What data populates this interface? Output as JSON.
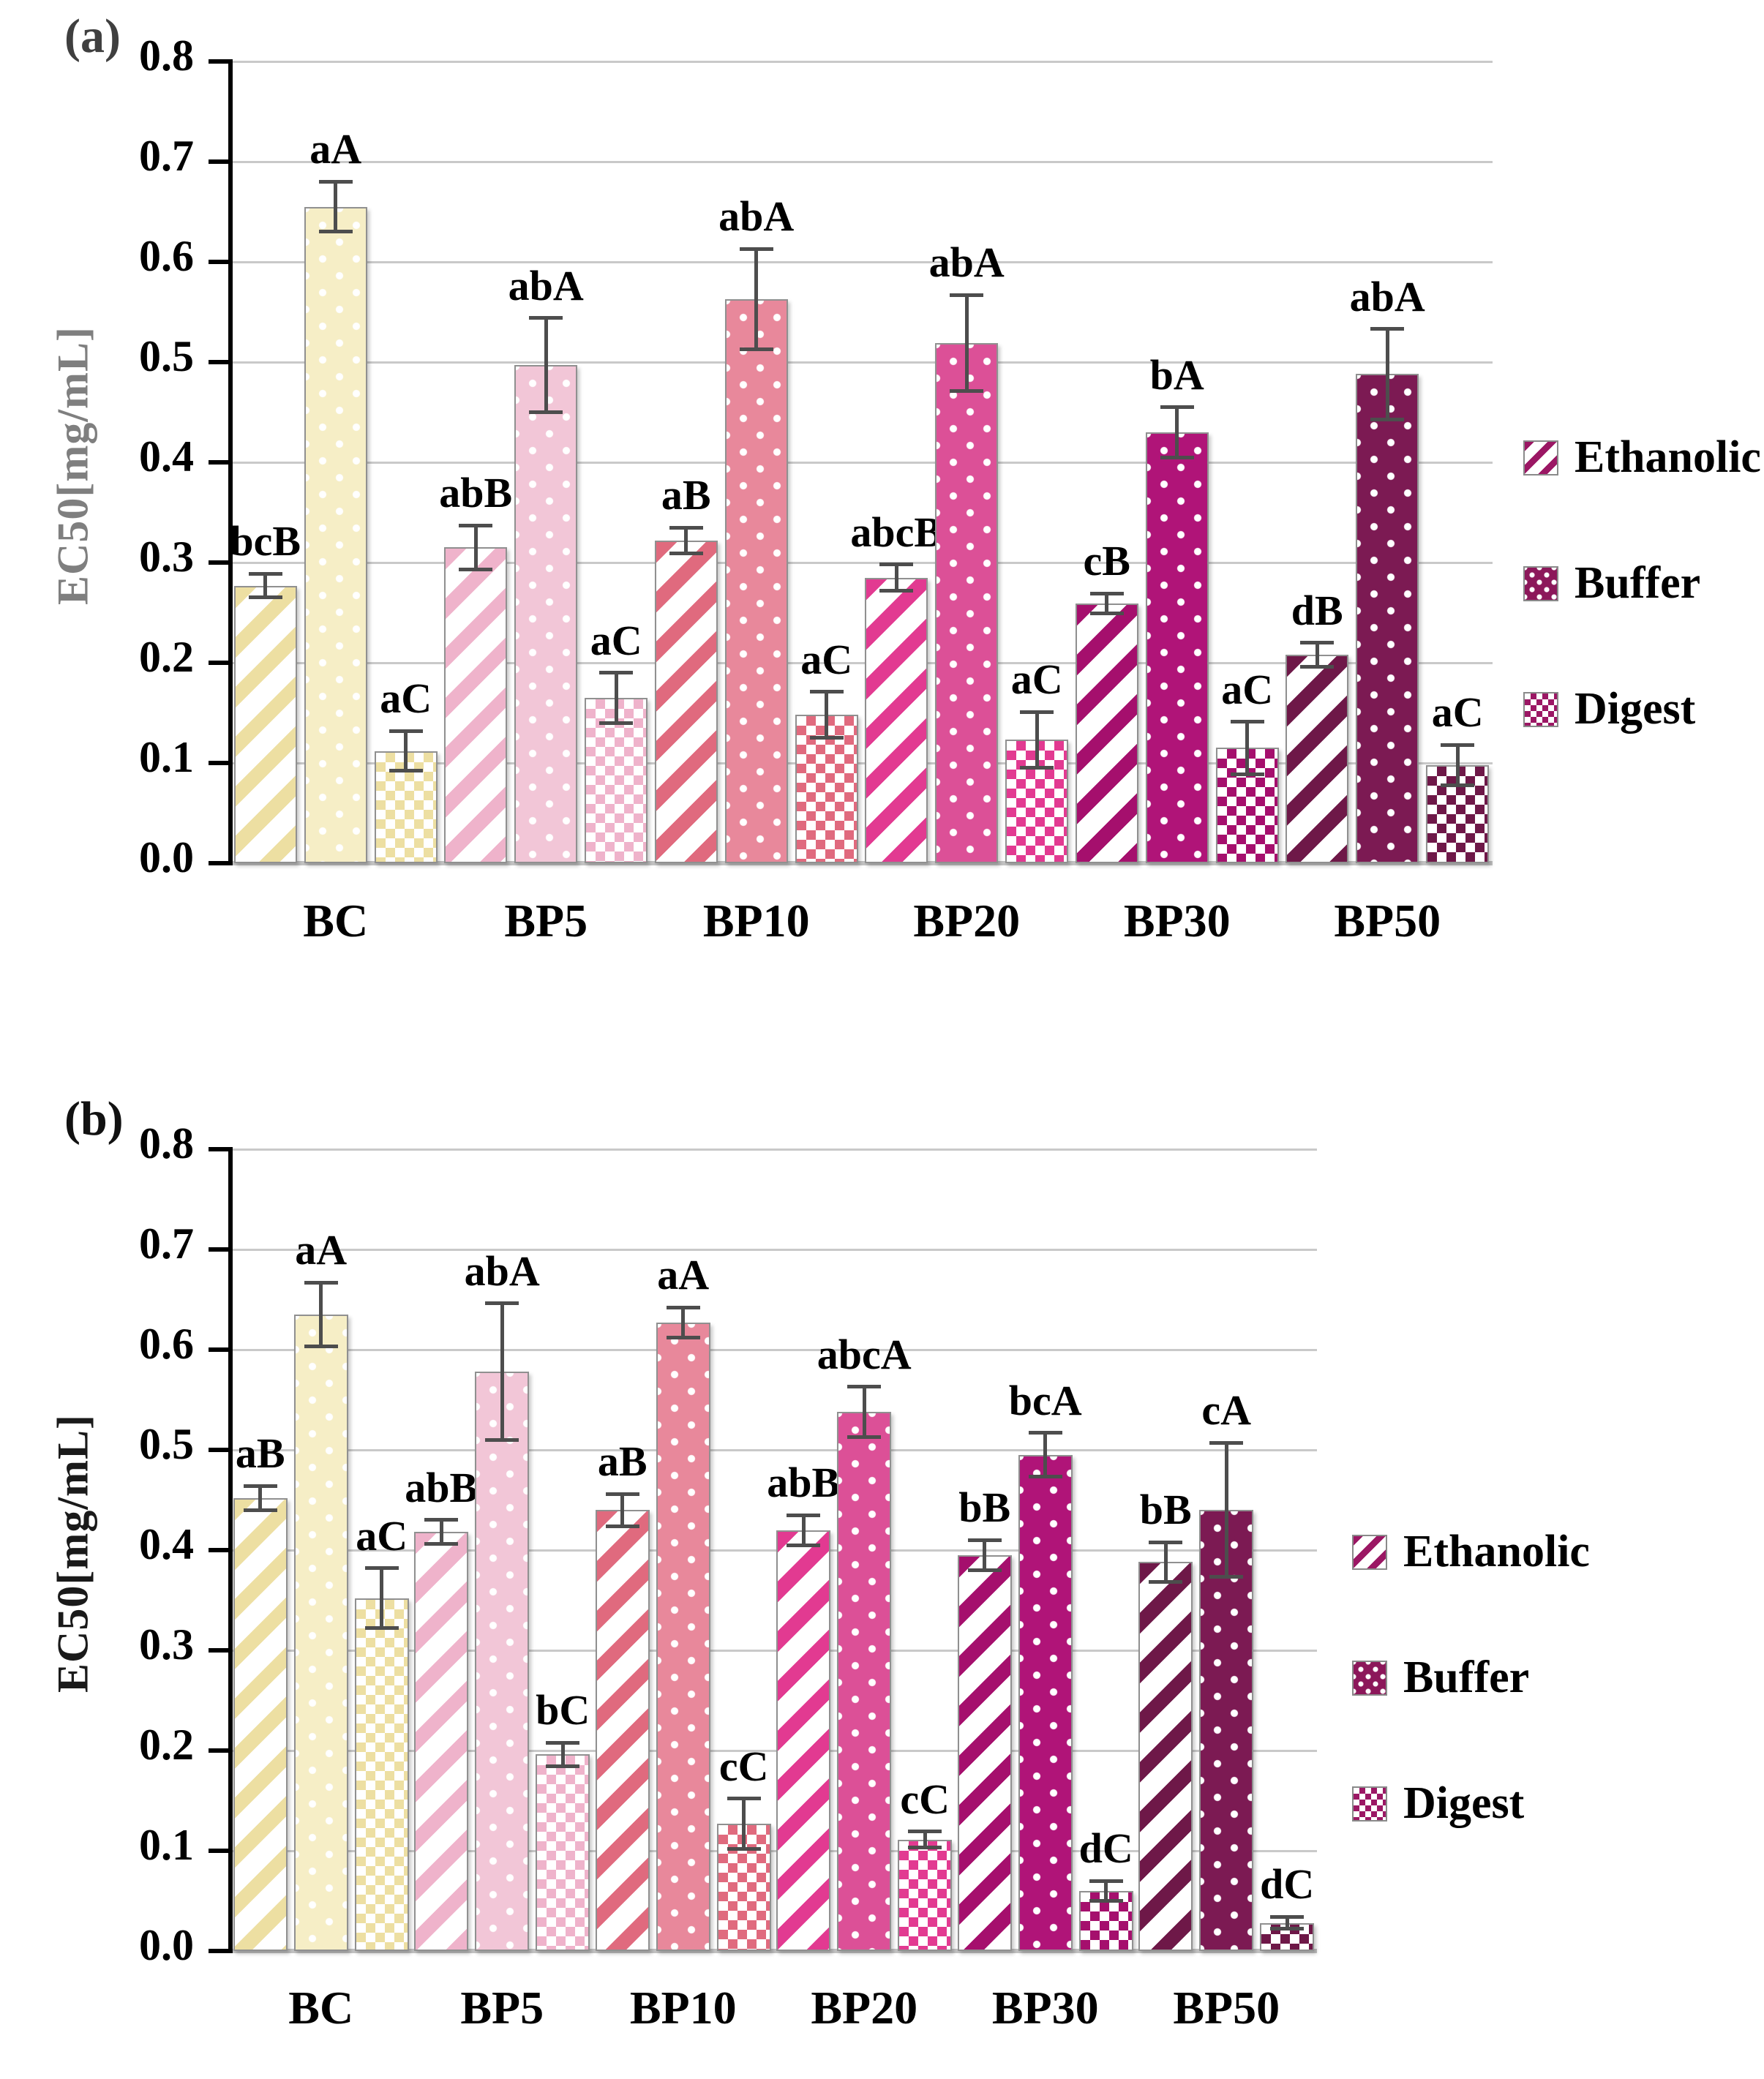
{
  "figure": {
    "ylabel": "EC50[mg/mL]",
    "legend": [
      "Ethanolic",
      "Buffer",
      "Digest"
    ],
    "colors": {
      "groups": {
        "BC": {
          "stripe": "#EDDFA2",
          "fill": "#F6EEC6"
        },
        "BP5": {
          "stripe": "#EFB3CB",
          "fill": "#F2C6D7"
        },
        "BP10": {
          "stripe": "#E06A7E",
          "fill": "#E8889B"
        },
        "BP20": {
          "stripe": "#E23A91",
          "fill": "#DC5097"
        },
        "BP30": {
          "stripe": "#A50F6D",
          "fill": "#B01478"
        },
        "BP50": {
          "stripe": "#6E1848",
          "fill": "#7C1A53"
        }
      },
      "legend_stripe": "#9B1764",
      "legend_fill": "#8C175A",
      "error_bar": "#4d4d4d",
      "grid": "#c9c9c9",
      "axis": "#000000",
      "ylabel_panel_a": "#7f7f7f",
      "ylabel_panel_b": "#1a1a1a"
    }
  },
  "chart_data": [
    {
      "type": "bar",
      "panel_label": "(a)",
      "ylabel": "EC50[mg/mL]",
      "ylim": [
        0.0,
        0.8
      ],
      "ytick_step": 0.1,
      "grid": true,
      "legend_position": "right",
      "categories": [
        "BC",
        "BP5",
        "BP10",
        "BP20",
        "BP30",
        "BP50"
      ],
      "series": [
        {
          "name": "Ethanolic",
          "pattern": "diagonal-stripes",
          "values": [
            0.277,
            0.315,
            0.322,
            0.285,
            0.259,
            0.208
          ],
          "errors": [
            0.012,
            0.022,
            0.013,
            0.013,
            0.01,
            0.012
          ],
          "sig_labels": [
            "bcB",
            "abB",
            "aB",
            "abcB",
            "cB",
            "dB"
          ]
        },
        {
          "name": "Buffer",
          "pattern": "polka-dots",
          "values": [
            0.655,
            0.497,
            0.563,
            0.519,
            0.43,
            0.488
          ],
          "errors": [
            0.025,
            0.047,
            0.05,
            0.048,
            0.025,
            0.045
          ],
          "sig_labels": [
            "aA",
            "abA",
            "abA",
            "abA",
            "bA",
            "abA"
          ]
        },
        {
          "name": "Digest",
          "pattern": "checkerboard",
          "values": [
            0.112,
            0.165,
            0.148,
            0.123,
            0.115,
            0.098
          ],
          "errors": [
            0.02,
            0.025,
            0.023,
            0.028,
            0.026,
            0.02
          ],
          "sig_labels": [
            "aC",
            "aC",
            "aC",
            "aC",
            "aC",
            "aC"
          ]
        }
      ]
    },
    {
      "type": "bar",
      "panel_label": "(b)",
      "ylabel": "EC50[mg/mL]",
      "ylim": [
        0.0,
        0.8
      ],
      "ytick_step": 0.1,
      "grid": true,
      "legend_position": "right",
      "categories": [
        "BC",
        "BP5",
        "BP10",
        "BP20",
        "BP30",
        "BP50"
      ],
      "series": [
        {
          "name": "Ethanolic",
          "pattern": "diagonal-stripes",
          "values": [
            0.452,
            0.418,
            0.44,
            0.42,
            0.395,
            0.388
          ],
          "errors": [
            0.012,
            0.012,
            0.016,
            0.015,
            0.015,
            0.02
          ],
          "sig_labels": [
            "aB",
            "abB",
            "aB",
            "abB",
            "bB",
            "bB"
          ]
        },
        {
          "name": "Buffer",
          "pattern": "polka-dots",
          "values": [
            0.635,
            0.578,
            0.627,
            0.538,
            0.495,
            0.44
          ],
          "errors": [
            0.032,
            0.068,
            0.015,
            0.025,
            0.022,
            0.067
          ],
          "sig_labels": [
            "aA",
            "abA",
            "aA",
            "abcA",
            "bcA",
            "cA"
          ]
        },
        {
          "name": "Digest",
          "pattern": "checkerboard",
          "values": [
            0.352,
            0.196,
            0.127,
            0.111,
            0.06,
            0.028
          ],
          "errors": [
            0.03,
            0.012,
            0.025,
            0.008,
            0.01,
            0.006
          ],
          "sig_labels": [
            "aC",
            "bC",
            "cC",
            "cC",
            "dC",
            "dC"
          ]
        }
      ]
    }
  ]
}
